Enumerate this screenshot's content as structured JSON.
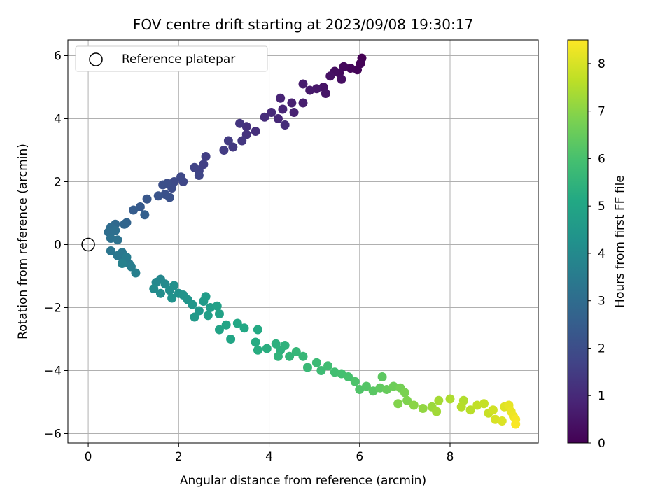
{
  "chart_data": {
    "type": "scatter",
    "title": "FOV centre drift starting at 2023/09/08 19:30:17",
    "xlabel": "Angular distance from reference (arcmin)",
    "ylabel": "Rotation from reference (arcmin)",
    "xlim": [
      -0.45,
      9.95
    ],
    "ylim": [
      -6.3,
      6.5
    ],
    "xticks": [
      0,
      2,
      4,
      6,
      8
    ],
    "yticks": [
      -6,
      -4,
      -2,
      0,
      2,
      4,
      6
    ],
    "xtick_labels": [
      "0",
      "2",
      "4",
      "6",
      "8"
    ],
    "ytick_labels": [
      "−6",
      "−4",
      "−2",
      "0",
      "2",
      "4",
      "6"
    ],
    "grid": true,
    "legend": {
      "position": "top-left",
      "entries": [
        "Reference platepar"
      ]
    },
    "reference_point": {
      "x": 0,
      "y": 0,
      "label": "Reference platepar"
    },
    "colorbar": {
      "label": "Hours from first FF file",
      "colormap": "viridis",
      "range": [
        0,
        8.5
      ],
      "ticks": [
        0,
        1,
        2,
        3,
        4,
        5,
        6,
        7,
        8
      ],
      "tick_labels": [
        "0",
        "1",
        "2",
        "3",
        "4",
        "5",
        "6",
        "7",
        "8"
      ]
    },
    "series": [
      {
        "values": [
          {
            "x": 6.05,
            "y": 5.92,
            "h": 0.0
          },
          {
            "x": 6.02,
            "y": 5.75,
            "h": 0.05
          },
          {
            "x": 5.95,
            "y": 5.55,
            "h": 0.1
          },
          {
            "x": 5.8,
            "y": 5.6,
            "h": 0.15
          },
          {
            "x": 5.65,
            "y": 5.65,
            "h": 0.2
          },
          {
            "x": 5.55,
            "y": 5.45,
            "h": 0.25
          },
          {
            "x": 5.45,
            "y": 5.5,
            "h": 0.3
          },
          {
            "x": 5.6,
            "y": 5.25,
            "h": 0.35
          },
          {
            "x": 5.35,
            "y": 5.35,
            "h": 0.4
          },
          {
            "x": 5.2,
            "y": 5.0,
            "h": 0.45
          },
          {
            "x": 5.25,
            "y": 4.8,
            "h": 0.5
          },
          {
            "x": 5.05,
            "y": 4.95,
            "h": 0.55
          },
          {
            "x": 4.9,
            "y": 4.9,
            "h": 0.6
          },
          {
            "x": 4.75,
            "y": 5.1,
            "h": 0.65
          },
          {
            "x": 4.75,
            "y": 4.5,
            "h": 0.7
          },
          {
            "x": 4.5,
            "y": 4.5,
            "h": 0.75
          },
          {
            "x": 4.55,
            "y": 4.2,
            "h": 0.8
          },
          {
            "x": 4.25,
            "y": 4.65,
            "h": 0.85
          },
          {
            "x": 4.3,
            "y": 4.3,
            "h": 0.9
          },
          {
            "x": 4.2,
            "y": 4.0,
            "h": 0.95
          },
          {
            "x": 4.05,
            "y": 4.2,
            "h": 1.0
          },
          {
            "x": 4.35,
            "y": 3.8,
            "h": 1.05
          },
          {
            "x": 3.9,
            "y": 4.05,
            "h": 1.1
          },
          {
            "x": 3.7,
            "y": 3.6,
            "h": 1.15
          },
          {
            "x": 3.5,
            "y": 3.75,
            "h": 1.2
          },
          {
            "x": 3.5,
            "y": 3.5,
            "h": 1.25
          },
          {
            "x": 3.35,
            "y": 3.85,
            "h": 1.3
          },
          {
            "x": 3.4,
            "y": 3.3,
            "h": 1.35
          },
          {
            "x": 3.2,
            "y": 3.1,
            "h": 1.4
          },
          {
            "x": 3.1,
            "y": 3.3,
            "h": 1.45
          },
          {
            "x": 3.0,
            "y": 3.0,
            "h": 1.5
          },
          {
            "x": 2.6,
            "y": 2.8,
            "h": 1.55
          },
          {
            "x": 2.55,
            "y": 2.55,
            "h": 1.6
          },
          {
            "x": 2.45,
            "y": 2.35,
            "h": 1.65
          },
          {
            "x": 2.35,
            "y": 2.45,
            "h": 1.7
          },
          {
            "x": 2.45,
            "y": 2.2,
            "h": 1.75
          },
          {
            "x": 2.1,
            "y": 2.0,
            "h": 1.8
          },
          {
            "x": 2.05,
            "y": 2.15,
            "h": 1.85
          },
          {
            "x": 1.9,
            "y": 2.0,
            "h": 1.9
          },
          {
            "x": 1.85,
            "y": 1.8,
            "h": 1.95
          },
          {
            "x": 1.75,
            "y": 1.95,
            "h": 2.0
          },
          {
            "x": 1.65,
            "y": 1.9,
            "h": 2.05
          },
          {
            "x": 1.7,
            "y": 1.6,
            "h": 2.1
          },
          {
            "x": 1.8,
            "y": 1.5,
            "h": 2.15
          },
          {
            "x": 1.55,
            "y": 1.55,
            "h": 2.2
          },
          {
            "x": 1.3,
            "y": 1.45,
            "h": 2.3
          },
          {
            "x": 1.15,
            "y": 1.2,
            "h": 2.4
          },
          {
            "x": 1.0,
            "y": 1.1,
            "h": 2.5
          },
          {
            "x": 1.25,
            "y": 0.95,
            "h": 2.6
          },
          {
            "x": 0.85,
            "y": 0.7,
            "h": 2.7
          },
          {
            "x": 0.8,
            "y": 0.65,
            "h": 2.8
          },
          {
            "x": 0.6,
            "y": 0.65,
            "h": 2.9
          },
          {
            "x": 0.5,
            "y": 0.55,
            "h": 3.0
          },
          {
            "x": 0.45,
            "y": 0.4,
            "h": 3.05
          },
          {
            "x": 0.6,
            "y": 0.45,
            "h": 3.1
          },
          {
            "x": 0.5,
            "y": 0.2,
            "h": 3.15
          },
          {
            "x": 0.65,
            "y": 0.15,
            "h": 3.2
          },
          {
            "x": 0.5,
            "y": -0.2,
            "h": 3.3
          },
          {
            "x": 0.65,
            "y": -0.35,
            "h": 3.35
          },
          {
            "x": 0.75,
            "y": -0.25,
            "h": 3.4
          },
          {
            "x": 0.8,
            "y": -0.5,
            "h": 3.45
          },
          {
            "x": 0.9,
            "y": -0.6,
            "h": 3.5
          },
          {
            "x": 0.85,
            "y": -0.4,
            "h": 3.55
          },
          {
            "x": 0.95,
            "y": -0.7,
            "h": 3.6
          },
          {
            "x": 1.05,
            "y": -0.9,
            "h": 3.65
          },
          {
            "x": 0.75,
            "y": -0.6,
            "h": 3.7
          },
          {
            "x": 1.6,
            "y": -1.1,
            "h": 3.9
          },
          {
            "x": 1.5,
            "y": -1.2,
            "h": 3.95
          },
          {
            "x": 1.7,
            "y": -1.25,
            "h": 4.0
          },
          {
            "x": 1.45,
            "y": -1.4,
            "h": 4.05
          },
          {
            "x": 1.6,
            "y": -1.55,
            "h": 4.1
          },
          {
            "x": 1.8,
            "y": -1.45,
            "h": 4.15
          },
          {
            "x": 1.9,
            "y": -1.3,
            "h": 4.2
          },
          {
            "x": 2.0,
            "y": -1.55,
            "h": 4.25
          },
          {
            "x": 1.85,
            "y": -1.7,
            "h": 4.3
          },
          {
            "x": 2.1,
            "y": -1.6,
            "h": 4.35
          },
          {
            "x": 2.2,
            "y": -1.75,
            "h": 4.4
          },
          {
            "x": 2.3,
            "y": -1.9,
            "h": 4.45
          },
          {
            "x": 2.45,
            "y": -2.1,
            "h": 4.5
          },
          {
            "x": 2.35,
            "y": -2.3,
            "h": 4.55
          },
          {
            "x": 2.55,
            "y": -1.8,
            "h": 4.6
          },
          {
            "x": 2.6,
            "y": -1.65,
            "h": 4.65
          },
          {
            "x": 2.7,
            "y": -2.0,
            "h": 4.7
          },
          {
            "x": 2.65,
            "y": -2.25,
            "h": 4.75
          },
          {
            "x": 2.85,
            "y": -1.95,
            "h": 4.8
          },
          {
            "x": 2.9,
            "y": -2.2,
            "h": 4.85
          },
          {
            "x": 2.9,
            "y": -2.7,
            "h": 4.9
          },
          {
            "x": 3.05,
            "y": -2.55,
            "h": 4.95
          },
          {
            "x": 3.15,
            "y": -3.0,
            "h": 5.0
          },
          {
            "x": 3.3,
            "y": -2.5,
            "h": 5.05
          },
          {
            "x": 3.45,
            "y": -2.65,
            "h": 5.1
          },
          {
            "x": 3.75,
            "y": -2.7,
            "h": 5.15
          },
          {
            "x": 3.7,
            "y": -3.1,
            "h": 5.2
          },
          {
            "x": 3.75,
            "y": -3.35,
            "h": 5.25
          },
          {
            "x": 3.95,
            "y": -3.3,
            "h": 5.3
          },
          {
            "x": 4.15,
            "y": -3.15,
            "h": 5.35
          },
          {
            "x": 4.25,
            "y": -3.35,
            "h": 5.4
          },
          {
            "x": 4.35,
            "y": -3.2,
            "h": 5.45
          },
          {
            "x": 4.2,
            "y": -3.55,
            "h": 5.5
          },
          {
            "x": 4.45,
            "y": -3.55,
            "h": 5.55
          },
          {
            "x": 4.6,
            "y": -3.4,
            "h": 5.6
          },
          {
            "x": 4.75,
            "y": -3.55,
            "h": 5.65
          },
          {
            "x": 4.85,
            "y": -3.9,
            "h": 5.7
          },
          {
            "x": 5.05,
            "y": -3.75,
            "h": 5.75
          },
          {
            "x": 5.15,
            "y": -4.0,
            "h": 5.8
          },
          {
            "x": 5.3,
            "y": -3.85,
            "h": 5.85
          },
          {
            "x": 5.45,
            "y": -4.05,
            "h": 5.9
          },
          {
            "x": 5.6,
            "y": -4.1,
            "h": 5.95
          },
          {
            "x": 5.75,
            "y": -4.2,
            "h": 6.0
          },
          {
            "x": 5.9,
            "y": -4.35,
            "h": 6.1
          },
          {
            "x": 6.0,
            "y": -4.6,
            "h": 6.15
          },
          {
            "x": 6.15,
            "y": -4.5,
            "h": 6.2
          },
          {
            "x": 6.3,
            "y": -4.65,
            "h": 6.3
          },
          {
            "x": 6.5,
            "y": -4.2,
            "h": 6.35
          },
          {
            "x": 6.45,
            "y": -4.55,
            "h": 6.4
          },
          {
            "x": 6.6,
            "y": -4.6,
            "h": 6.5
          },
          {
            "x": 6.75,
            "y": -4.5,
            "h": 6.6
          },
          {
            "x": 6.9,
            "y": -4.55,
            "h": 6.7
          },
          {
            "x": 7.0,
            "y": -4.7,
            "h": 6.8
          },
          {
            "x": 7.05,
            "y": -4.95,
            "h": 6.85
          },
          {
            "x": 6.85,
            "y": -5.05,
            "h": 6.9
          },
          {
            "x": 7.2,
            "y": -5.1,
            "h": 7.0
          },
          {
            "x": 7.4,
            "y": -5.2,
            "h": 7.1
          },
          {
            "x": 7.6,
            "y": -5.15,
            "h": 7.2
          },
          {
            "x": 7.7,
            "y": -5.3,
            "h": 7.3
          },
          {
            "x": 7.75,
            "y": -4.95,
            "h": 7.35
          },
          {
            "x": 8.0,
            "y": -4.9,
            "h": 7.45
          },
          {
            "x": 8.3,
            "y": -4.95,
            "h": 7.5
          },
          {
            "x": 8.25,
            "y": -5.15,
            "h": 7.55
          },
          {
            "x": 8.45,
            "y": -5.25,
            "h": 7.6
          },
          {
            "x": 8.6,
            "y": -5.1,
            "h": 7.7
          },
          {
            "x": 8.75,
            "y": -5.05,
            "h": 7.75
          },
          {
            "x": 8.85,
            "y": -5.35,
            "h": 7.8
          },
          {
            "x": 8.95,
            "y": -5.25,
            "h": 7.9
          },
          {
            "x": 9.0,
            "y": -5.55,
            "h": 8.0
          },
          {
            "x": 9.15,
            "y": -5.6,
            "h": 8.05
          },
          {
            "x": 9.2,
            "y": -5.15,
            "h": 8.1
          },
          {
            "x": 9.3,
            "y": -5.1,
            "h": 8.2
          },
          {
            "x": 9.35,
            "y": -5.3,
            "h": 8.25
          },
          {
            "x": 9.4,
            "y": -5.45,
            "h": 8.3
          },
          {
            "x": 9.45,
            "y": -5.55,
            "h": 8.4
          },
          {
            "x": 9.45,
            "y": -5.7,
            "h": 8.45
          }
        ]
      }
    ]
  }
}
